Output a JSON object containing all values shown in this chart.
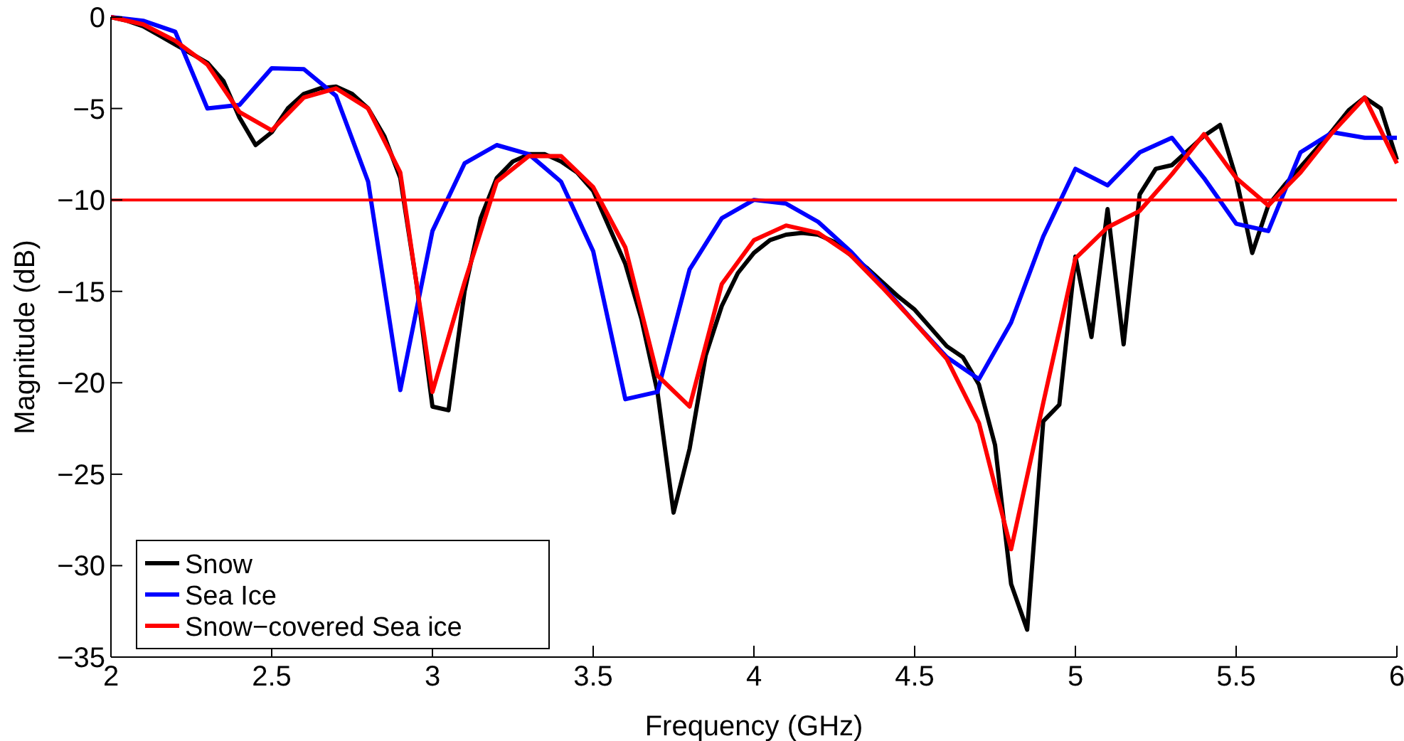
{
  "chart_data": {
    "type": "line",
    "xlabel": "Frequency (GHz)",
    "ylabel": "Magnitude (dB)",
    "xlim": [
      2,
      6
    ],
    "xticks": [
      2,
      2.5,
      3,
      3.5,
      4,
      4.5,
      5,
      5.5,
      6
    ],
    "ylim": [
      -35,
      0
    ],
    "yticks": [
      -35,
      -30,
      -25,
      -20,
      -15,
      -10,
      -5,
      0
    ],
    "grid": false,
    "legend": "bottom left",
    "line_style": "solid",
    "marker": "none",
    "ref_lines": [
      {
        "axis": "y",
        "value": -10,
        "color": "#ff0000"
      }
    ],
    "series": [
      {
        "name": "Snow",
        "color": "#000000",
        "x": [
          2,
          2.05,
          2.1,
          2.15,
          2.2,
          2.25,
          2.3,
          2.35,
          2.4,
          2.45,
          2.5,
          2.55,
          2.6,
          2.65,
          2.7,
          2.75,
          2.8,
          2.85,
          2.9,
          2.95,
          3,
          3.05,
          3.1,
          3.15,
          3.2,
          3.25,
          3.3,
          3.35,
          3.4,
          3.45,
          3.5,
          3.55,
          3.6,
          3.65,
          3.7,
          3.75,
          3.8,
          3.85,
          3.9,
          3.95,
          4,
          4.05,
          4.1,
          4.15,
          4.2,
          4.25,
          4.3,
          4.35,
          4.4,
          4.45,
          4.5,
          4.55,
          4.6,
          4.65,
          4.7,
          4.75,
          4.8,
          4.85,
          4.9,
          4.95,
          5,
          5.05,
          5.1,
          5.15,
          5.2,
          5.25,
          5.3,
          5.35,
          5.4,
          5.45,
          5.5,
          5.55,
          5.6,
          5.65,
          5.7,
          5.75,
          5.8,
          5.85,
          5.9,
          5.95,
          6
        ],
        "values": [
          0,
          -0.2,
          -0.5,
          -1.0,
          -1.5,
          -2.0,
          -2.5,
          -3.5,
          -5.5,
          -7.0,
          -6.3,
          -5.0,
          -4.2,
          -3.9,
          -3.8,
          -4.2,
          -5.0,
          -6.5,
          -8.8,
          -14.5,
          -21.3,
          -21.5,
          -15,
          -11,
          -8.8,
          -7.9,
          -7.5,
          -7.5,
          -7.9,
          -8.5,
          -9.5,
          -11.5,
          -13.5,
          -16.5,
          -20.5,
          -27.1,
          -23.6,
          -18.5,
          -15.8,
          -14,
          -12.9,
          -12.2,
          -11.9,
          -11.8,
          -11.9,
          -12.3,
          -13,
          -13.7,
          -14.5,
          -15.3,
          -16,
          -17,
          -18,
          -18.6,
          -20.1,
          -23.4,
          -31.0,
          -33.5,
          -22.1,
          -21.2,
          -13.1,
          -17.5,
          -10.5,
          -17.9,
          -9.7,
          -8.3,
          -8.1,
          -7.3,
          -6.5,
          -5.9,
          -8.8,
          -12.9,
          -10.3,
          -9.2,
          -8.2,
          -7.2,
          -6.2,
          -5.1,
          -4.4,
          -5.0,
          -7.8
        ]
      },
      {
        "name": "Sea Ice",
        "color": "#0000ff",
        "x": [
          2,
          2.1,
          2.2,
          2.3,
          2.4,
          2.5,
          2.6,
          2.7,
          2.8,
          2.9,
          3,
          3.1,
          3.2,
          3.3,
          3.4,
          3.5,
          3.6,
          3.7,
          3.8,
          3.9,
          4,
          4.1,
          4.2,
          4.3,
          4.4,
          4.5,
          4.6,
          4.7,
          4.8,
          4.9,
          5,
          5.1,
          5.2,
          5.3,
          5.4,
          5.5,
          5.6,
          5.7,
          5.8,
          5.9,
          6
        ],
        "values": [
          0,
          -0.2,
          -0.8,
          -5.0,
          -4.8,
          -2.8,
          -2.85,
          -4.3,
          -9,
          -20.4,
          -11.7,
          -8,
          -7,
          -7.5,
          -9,
          -12.8,
          -20.9,
          -20.5,
          -13.8,
          -11,
          -10,
          -10.2,
          -11.2,
          -12.8,
          -14.7,
          -16.7,
          -18.6,
          -19.8,
          -16.7,
          -12,
          -8.3,
          -9.2,
          -7.4,
          -6.6,
          -8.8,
          -11.3,
          -11.7,
          -7.4,
          -6.3,
          -6.6,
          -6.6
        ]
      },
      {
        "name": "Snow−covered Sea ice",
        "color": "#ff0000",
        "x": [
          2,
          2.1,
          2.2,
          2.3,
          2.4,
          2.5,
          2.6,
          2.7,
          2.8,
          2.9,
          3,
          3.1,
          3.2,
          3.3,
          3.4,
          3.5,
          3.6,
          3.7,
          3.8,
          3.9,
          4,
          4.1,
          4.2,
          4.3,
          4.4,
          4.5,
          4.6,
          4.7,
          4.8,
          4.9,
          5,
          5.1,
          5.2,
          5.3,
          5.4,
          5.5,
          5.6,
          5.7,
          5.8,
          5.9,
          6
        ],
        "values": [
          0,
          -0.4,
          -1.3,
          -2.6,
          -5.2,
          -6.2,
          -4.4,
          -3.9,
          -5.0,
          -8.5,
          -20.5,
          -14.5,
          -9,
          -7.6,
          -7.6,
          -9.3,
          -12.6,
          -19.6,
          -21.3,
          -14.6,
          -12.2,
          -11.4,
          -11.8,
          -13,
          -14.8,
          -16.7,
          -18.7,
          -22.2,
          -29.1,
          -21.1,
          -13.2,
          -11.5,
          -10.6,
          -8.6,
          -6.4,
          -8.8,
          -10.3,
          -8.5,
          -6.3,
          -4.4,
          -8.0
        ]
      }
    ]
  }
}
